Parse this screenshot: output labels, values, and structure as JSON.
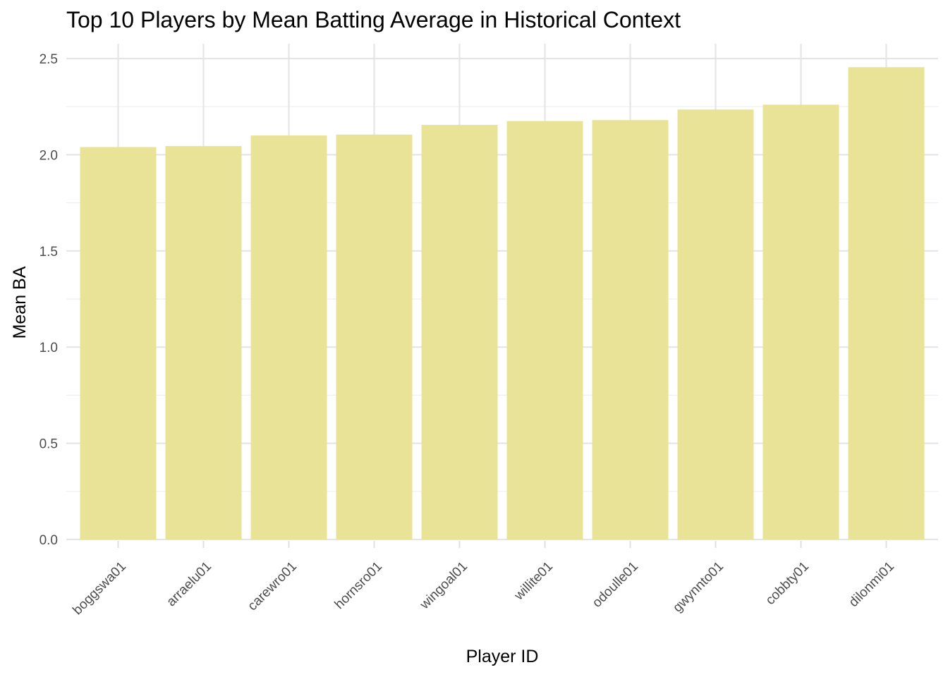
{
  "chart_data": {
    "type": "bar",
    "title": "Top 10 Players by Mean Batting Average in Historical Context",
    "xlabel": "Player ID",
    "ylabel": "Mean BA",
    "categories": [
      "boggswa01",
      "arraelu01",
      "carewro01",
      "hornsro01",
      "wingoal01",
      "willite01",
      "odoulle01",
      "gwynnto01",
      "cobbty01",
      "dilonmi01"
    ],
    "values": [
      2.04,
      2.045,
      2.1,
      2.105,
      2.155,
      2.175,
      2.18,
      2.235,
      2.26,
      2.455
    ],
    "ylim": [
      0,
      2.5
    ],
    "yticks": [
      0.0,
      0.5,
      1.0,
      1.5,
      2.0,
      2.5
    ],
    "ytick_labels": [
      "0.0",
      "0.5",
      "1.0",
      "1.5",
      "2.0",
      "2.5"
    ],
    "grid": true,
    "legend": "none",
    "bar_color": "#e8e397"
  }
}
